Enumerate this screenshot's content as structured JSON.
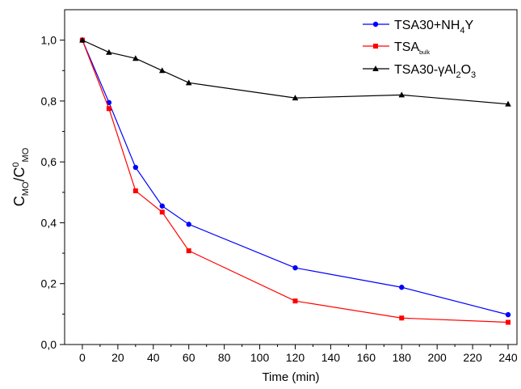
{
  "chart_data": {
    "type": "line",
    "title": "",
    "xlabel": "Time (min)",
    "ylabel": {
      "main": "C",
      "sub1": "MO",
      "sep": "/C",
      "sup": "0",
      "sub2": "MO"
    },
    "xlim": [
      -10,
      245
    ],
    "ylim": [
      0.0,
      1.1
    ],
    "xticks": [
      0,
      20,
      40,
      60,
      80,
      100,
      120,
      140,
      160,
      180,
      200,
      220,
      240
    ],
    "xtick_labels": [
      "0",
      "20",
      "40",
      "60",
      "80",
      "100",
      "120",
      "140",
      "160",
      "180",
      "200",
      "220",
      "240"
    ],
    "yticks": [
      0.0,
      0.2,
      0.4,
      0.6,
      0.8,
      1.0
    ],
    "ytick_labels": [
      "0,0",
      "0,2",
      "0,4",
      "0,6",
      "0,8",
      "1,0"
    ],
    "grid": false,
    "legend_position": "top-right",
    "series": [
      {
        "name": "TSA30+NH4Y",
        "legend": {
          "text": "TSA30+NH",
          "sub": "4",
          "after": "Y"
        },
        "color": "#0000ff",
        "marker": "circle",
        "x": [
          0,
          15,
          30,
          45,
          60,
          120,
          180,
          240
        ],
        "y": [
          1.0,
          0.795,
          0.582,
          0.455,
          0.395,
          0.252,
          0.188,
          0.098
        ]
      },
      {
        "name": "TSAbulk",
        "legend": {
          "text": "TSA",
          "sub": "bulk",
          "after": ""
        },
        "color": "#ff0000",
        "marker": "square",
        "x": [
          0,
          15,
          30,
          45,
          60,
          120,
          180,
          240
        ],
        "y": [
          1.0,
          0.775,
          0.505,
          0.435,
          0.308,
          0.143,
          0.087,
          0.073
        ]
      },
      {
        "name": "TSA30-γAl2O3",
        "legend": {
          "text": "TSA30-γAl",
          "sub": "2",
          "after": "O",
          "sub2": "3"
        },
        "color": "#000000",
        "marker": "triangle",
        "x": [
          0,
          15,
          30,
          45,
          60,
          120,
          180,
          240
        ],
        "y": [
          1.0,
          0.96,
          0.94,
          0.9,
          0.86,
          0.81,
          0.82,
          0.79
        ]
      }
    ]
  }
}
